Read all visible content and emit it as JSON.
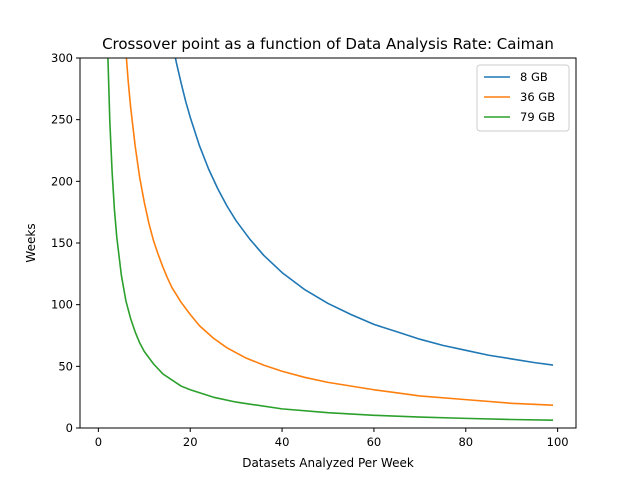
{
  "chart_data": {
    "type": "line",
    "title": "Crossover point as a function of Data Analysis Rate: Caiman",
    "xlabel": "Datasets Analyzed Per Week",
    "ylabel": "Weeks",
    "xlim": [
      -4,
      104
    ],
    "ylim": [
      0,
      300
    ],
    "xticks": [
      0,
      20,
      40,
      60,
      80,
      100
    ],
    "yticks": [
      0,
      50,
      100,
      150,
      200,
      250,
      300
    ],
    "grid": false,
    "legend_position": "top-right",
    "series": [
      {
        "name": "8 GB",
        "color": "#1f77b4",
        "x": [
          16,
          17,
          18,
          19,
          20,
          22,
          24,
          26,
          28,
          30,
          33,
          36,
          40,
          45,
          50,
          55,
          60,
          65,
          70,
          75,
          80,
          85,
          90,
          95,
          99
        ],
        "y": [
          315,
          296,
          280,
          265,
          252,
          229,
          210,
          194,
          180,
          168,
          153,
          140,
          126,
          112,
          101,
          92,
          84,
          78,
          72,
          67,
          63,
          59,
          56,
          53,
          51
        ]
      },
      {
        "name": "36 GB",
        "color": "#ff7f0e",
        "x": [
          6,
          6.5,
          7,
          8,
          9,
          10,
          11,
          12,
          13,
          14,
          15,
          16,
          18,
          20,
          22,
          25,
          28,
          32,
          36,
          40,
          45,
          50,
          60,
          70,
          80,
          90,
          99
        ],
        "y": [
          305,
          281,
          261,
          229,
          203,
          183,
          166,
          152,
          141,
          131,
          122,
          114,
          102,
          92,
          83,
          73,
          65,
          57,
          51,
          46,
          41,
          37,
          31,
          26,
          23,
          20,
          18.5
        ]
      },
      {
        "name": "79 GB",
        "color": "#2ca02c",
        "x": [
          2,
          2.5,
          3,
          3.5,
          4,
          5,
          6,
          7,
          8,
          9,
          10,
          12,
          14,
          16,
          18,
          20,
          25,
          30,
          40,
          50,
          60,
          70,
          80,
          90,
          99
        ],
        "y": [
          310,
          248,
          207,
          177,
          155,
          124,
          103,
          89,
          78,
          69,
          62,
          52,
          44,
          39,
          34,
          31,
          25,
          21,
          15.5,
          12.4,
          10.3,
          8.9,
          7.8,
          6.9,
          6.3
        ]
      }
    ]
  }
}
